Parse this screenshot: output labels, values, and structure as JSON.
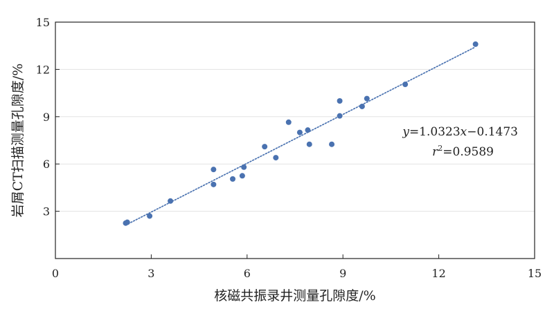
{
  "chart_data": {
    "type": "scatter",
    "xlabel": "核磁共振录井测量孔隙度/%",
    "ylabel": "岩屑CT扫描测量孔隙度/%",
    "xlim": [
      0,
      15
    ],
    "ylim": [
      0,
      15
    ],
    "xticks": [
      0,
      3,
      6,
      9,
      12,
      15
    ],
    "yticks": [
      3,
      6,
      9,
      12,
      15
    ],
    "x_tick_labels": [
      "0",
      "3",
      "6",
      "9",
      "12",
      "15"
    ],
    "y_tick_labels": [
      "3",
      "6",
      "9",
      "12",
      "15"
    ],
    "grid": "horizontal",
    "point_color": "#4a72b0",
    "trendline": {
      "slope": 1.0323,
      "intercept": -0.1473,
      "x_range": [
        2.2,
        13.1
      ],
      "style": "dotted",
      "color": "#4a72b0"
    },
    "equation_text": {
      "y_part": "y",
      "eq_rest": "=1.0323",
      "x_part": "x",
      "tail": "−0.1473",
      "r_part": "r",
      "sup": "2",
      "r_rest": "=0.9589"
    },
    "points": [
      {
        "x": 2.2,
        "y": 2.25
      },
      {
        "x": 2.25,
        "y": 2.3
      },
      {
        "x": 2.95,
        "y": 2.7
      },
      {
        "x": 3.6,
        "y": 3.65
      },
      {
        "x": 4.95,
        "y": 4.7
      },
      {
        "x": 4.95,
        "y": 5.65
      },
      {
        "x": 5.55,
        "y": 5.05
      },
      {
        "x": 5.85,
        "y": 5.25
      },
      {
        "x": 5.9,
        "y": 5.8
      },
      {
        "x": 6.55,
        "y": 7.1
      },
      {
        "x": 6.9,
        "y": 6.4
      },
      {
        "x": 7.3,
        "y": 8.65
      },
      {
        "x": 7.65,
        "y": 8.0
      },
      {
        "x": 7.9,
        "y": 8.15
      },
      {
        "x": 7.95,
        "y": 7.25
      },
      {
        "x": 8.65,
        "y": 7.25
      },
      {
        "x": 8.9,
        "y": 9.05
      },
      {
        "x": 8.9,
        "y": 10.0
      },
      {
        "x": 9.6,
        "y": 9.65
      },
      {
        "x": 9.75,
        "y": 10.15
      },
      {
        "x": 10.95,
        "y": 11.05
      },
      {
        "x": 13.15,
        "y": 13.6
      }
    ]
  }
}
